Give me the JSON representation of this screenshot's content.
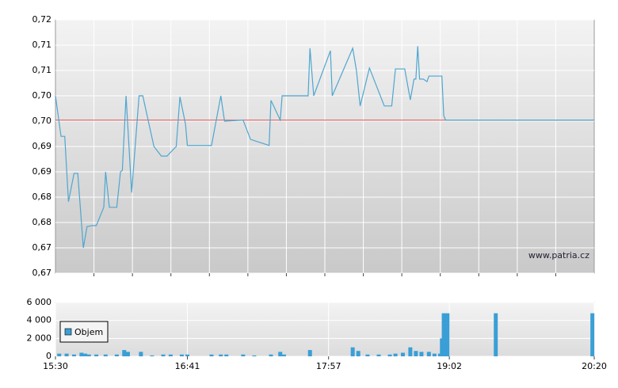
{
  "chart_data": [
    {
      "type": "line",
      "x": [
        930,
        933,
        935,
        937,
        940,
        942,
        945,
        947,
        950,
        952,
        956,
        957,
        959,
        963,
        965,
        966,
        968,
        971,
        975,
        977,
        983,
        987,
        990,
        995,
        997,
        1000,
        1001,
        1014,
        1019,
        1021,
        1031,
        1035,
        1045,
        1046,
        1051,
        1052,
        1066,
        1067,
        1069,
        1078,
        1079,
        1090,
        1092,
        1094,
        1099,
        1107,
        1111,
        1113,
        1118,
        1121,
        1123,
        1124,
        1125,
        1126,
        1128,
        1130,
        1131,
        1138,
        1139,
        1140,
        1220
      ],
      "series": [
        {
          "color": "#4ea6d0",
          "values": [
            0.705,
            0.697,
            0.697,
            0.6841,
            0.6897,
            0.6897,
            0.675,
            0.6792,
            0.6794,
            0.6794,
            0.683,
            0.69,
            0.683,
            0.683,
            0.69,
            0.6903,
            0.705,
            0.6859,
            0.705,
            0.705,
            0.695,
            0.6931,
            0.6931,
            0.695,
            0.7048,
            0.6994,
            0.6952,
            0.6952,
            0.705,
            0.7,
            0.7002,
            0.6964,
            0.6952,
            0.7041,
            0.7002,
            0.705,
            0.705,
            0.7144,
            0.705,
            0.7139,
            0.705,
            0.7144,
            0.71,
            0.703,
            0.7105,
            0.703,
            0.703,
            0.7103,
            0.7103,
            0.7042,
            0.7083,
            0.7083,
            0.7148,
            0.7083,
            0.7083,
            0.7078,
            0.7089,
            0.7089,
            0.7011,
            0.7002,
            0.7002
          ]
        }
      ],
      "xlim": [
        930,
        1220
      ],
      "ylim": [
        0.67,
        0.72
      ],
      "yticks": [
        {
          "value": 0.67,
          "label": "0,67"
        },
        {
          "value": 0.675,
          "label": "0,67"
        },
        {
          "value": 0.68,
          "label": "0,68"
        },
        {
          "value": 0.685,
          "label": "0,68"
        },
        {
          "value": 0.69,
          "label": "0,69"
        },
        {
          "value": 0.695,
          "label": "0,69"
        },
        {
          "value": 0.7,
          "label": "0,70"
        },
        {
          "value": 0.705,
          "label": "0,70"
        },
        {
          "value": 0.71,
          "label": "0,71"
        },
        {
          "value": 0.715,
          "label": "0,71"
        },
        {
          "value": 0.72,
          "label": "0,72"
        }
      ],
      "reference_line": {
        "value": 0.7002,
        "color": "#d9534f"
      },
      "watermark": "www.patria.cz",
      "grid": true
    },
    {
      "type": "bar",
      "x": [
        932,
        936,
        940,
        944,
        946,
        948,
        952,
        957,
        963,
        967,
        969,
        976,
        982,
        988,
        992,
        998,
        1001,
        1014,
        1019,
        1022,
        1031,
        1037,
        1046,
        1051,
        1053,
        1067,
        1090,
        1093,
        1098,
        1104,
        1110,
        1113,
        1117,
        1121,
        1124,
        1127,
        1131,
        1134,
        1137,
        1138,
        1139,
        1141,
        1167,
        1219
      ],
      "series": [
        {
          "name": "Objem",
          "color": "#3a9fd6",
          "values": [
            300,
            300,
            200,
            400,
            300,
            200,
            200,
            200,
            200,
            700,
            500,
            500,
            100,
            200,
            200,
            200,
            200,
            200,
            200,
            200,
            200,
            100,
            200,
            500,
            200,
            700,
            1000,
            600,
            200,
            200,
            200,
            300,
            400,
            1000,
            600,
            500,
            500,
            300,
            300,
            2000,
            4800,
            4800,
            4800,
            4800
          ]
        }
      ],
      "xlim": [
        930,
        1220
      ],
      "xticks": [
        {
          "value": 930,
          "label": "15:30"
        },
        {
          "value": 1001,
          "label": "16:41"
        },
        {
          "value": 1077,
          "label": "17:57"
        },
        {
          "value": 1142,
          "label": "19:02"
        },
        {
          "value": 1220,
          "label": "20:20"
        }
      ],
      "ylim": [
        0,
        6000
      ],
      "yticks": [
        0,
        {
          "value": 2000,
          "label": "2 000"
        },
        {
          "value": 4000,
          "label": "4 000"
        },
        {
          "value": 6000,
          "label": "6 000"
        }
      ],
      "legend": "upper-left",
      "grid": true
    }
  ]
}
